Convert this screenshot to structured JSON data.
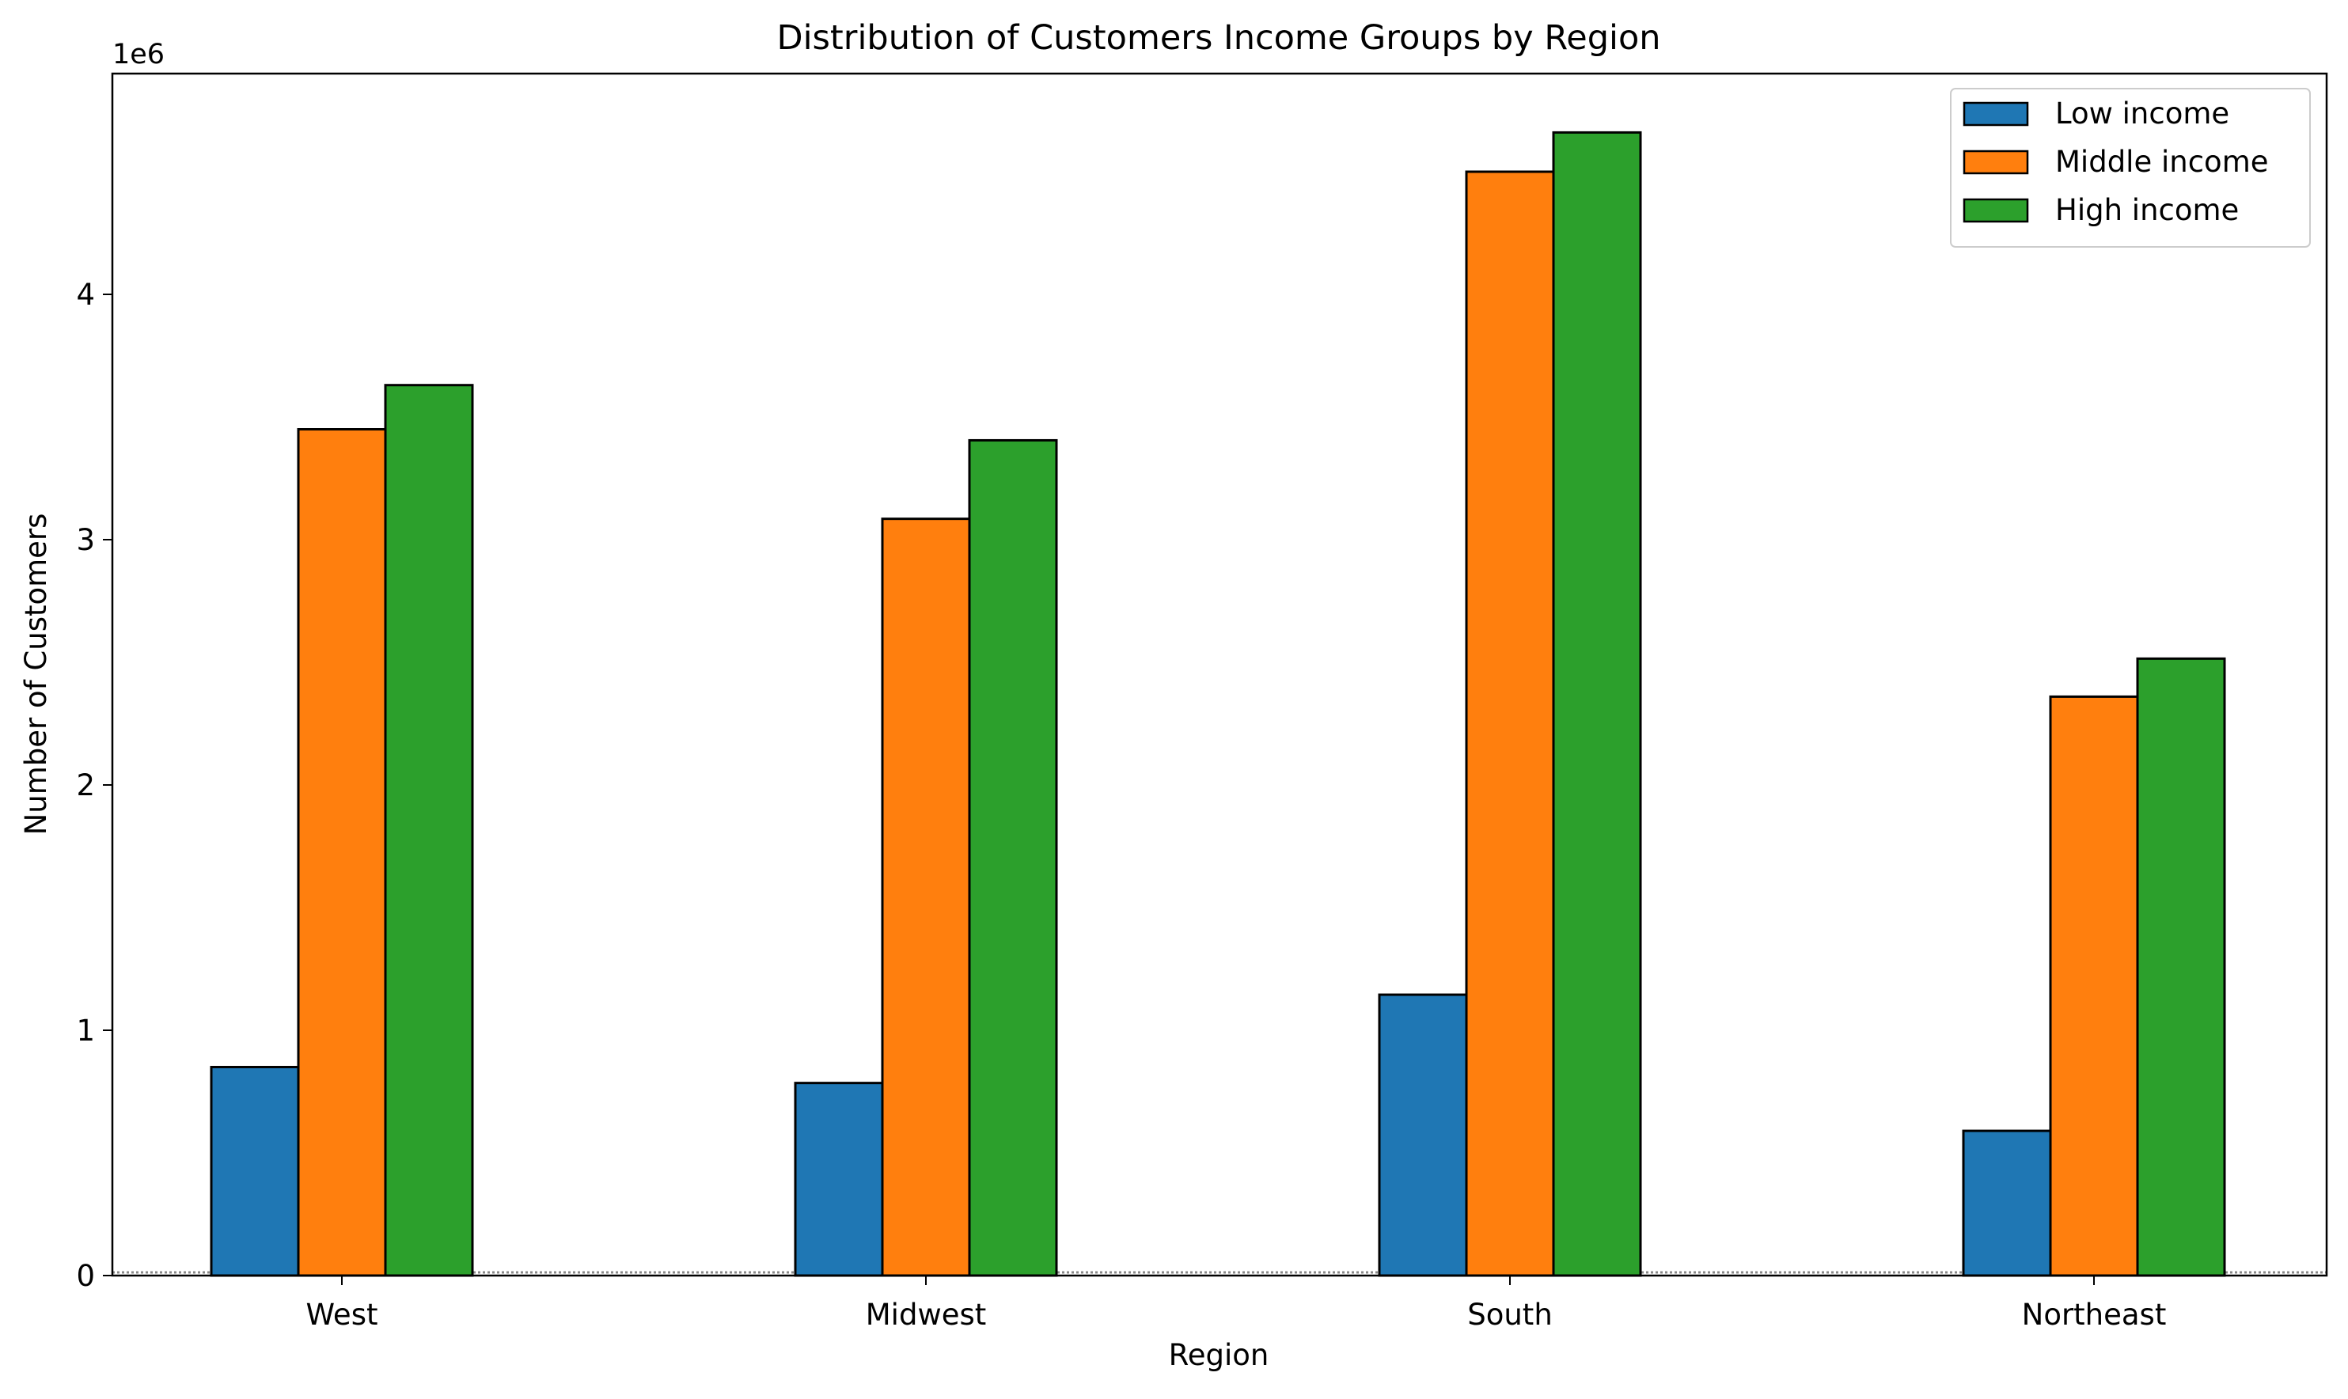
{
  "chart_data": {
    "type": "bar",
    "title": "Distribution of Customers Income Groups by Region",
    "xlabel": "Region",
    "ylabel": "Number of Customers",
    "y_offset_label": "1e6",
    "y_scale": 1000000,
    "categories": [
      "West",
      "Midwest",
      "South",
      "Northeast"
    ],
    "series": [
      {
        "name": "Low income",
        "color": "#1f77b4",
        "values": [
          850000,
          785000,
          1145000,
          590000
        ]
      },
      {
        "name": "Middle income",
        "color": "#ff7f0e",
        "values": [
          3450000,
          3085000,
          4500000,
          2360000
        ]
      },
      {
        "name": "High income",
        "color": "#2ca02c",
        "values": [
          3630000,
          3405000,
          4660000,
          2515000
        ]
      }
    ],
    "yticks": [
      0,
      1000000,
      2000000,
      3000000,
      4000000
    ],
    "ytick_labels": [
      "0",
      "1",
      "2",
      "3",
      "4"
    ],
    "ylim": [
      0,
      4900000
    ],
    "grid": false,
    "legend_position": "top-right",
    "baseline_dotted_line": true
  }
}
